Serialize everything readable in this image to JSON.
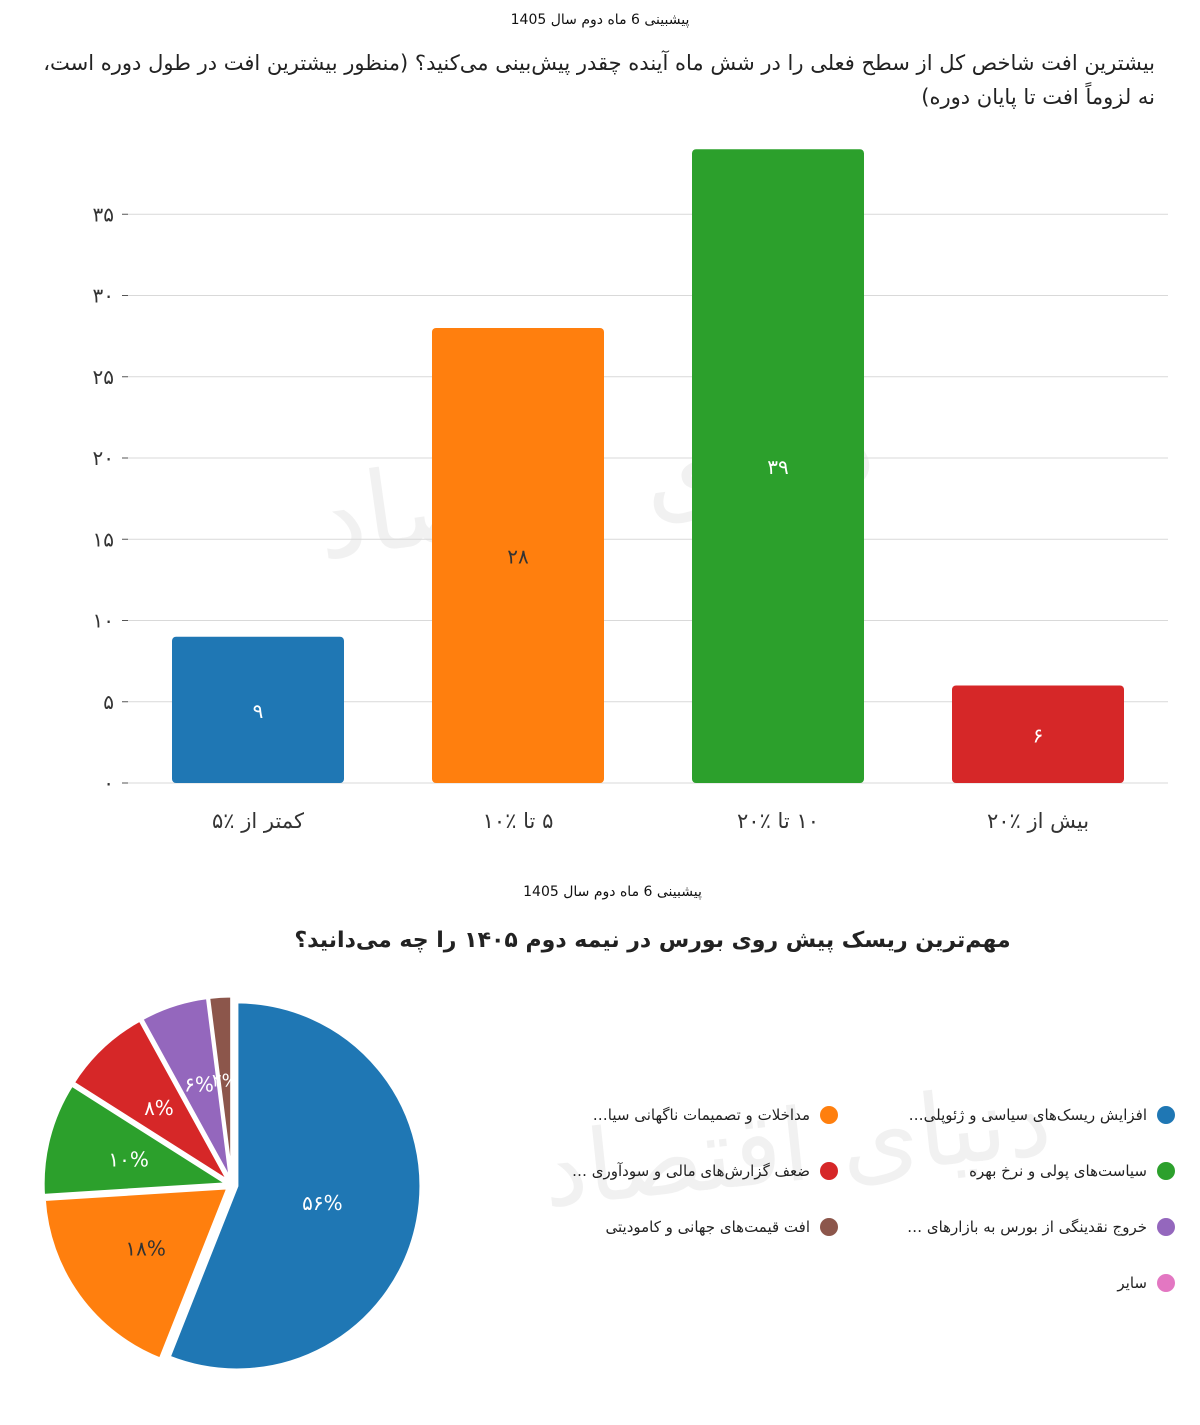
{
  "bar_chart_header": {
    "subtitle": "پیشبینی 6 ماه دوم سال 1405",
    "title": "بیشترین افت شاخص کل از سطح فعلی را در شش ماه آینده چقدر پیش‌بینی می‌کنید؟ (منظور بیشترین افت در طول دوره است، نه لزوماً افت تا پایان دوره)"
  },
  "pie_chart_header": {
    "subtitle": "پیشبینی 6 ماه دوم سال 1405",
    "title": "مهم‌ترین ریسک پیش روی بورس در نیمه دوم ۱۴۰۵ را چه می‌دانید؟"
  },
  "watermark": "دنیای اقتصاد",
  "chart_data": [
    {
      "type": "bar",
      "title": "بیشترین افت شاخص کل از سطح فعلی را در شش ماه آینده چقدر پیش‌بینی می‌کنید؟ (منظور بیشترین افت در طول دوره است، نه لزوماً افت تا پایان دوره)",
      "categories": [
        "کمتر از ٪۵",
        "۵ تا ٪۱۰",
        "۱۰ تا ٪۲۰",
        "بیش از ٪۲۰"
      ],
      "values": [
        9,
        28,
        39,
        6
      ],
      "value_labels": [
        "۹",
        "۲۸",
        "۳۹",
        "۶"
      ],
      "colors": [
        "#1f77b4",
        "#ff7f0e",
        "#2ca02c",
        "#d62728"
      ],
      "ylim": [
        0,
        39
      ],
      "yticks": [
        0,
        5,
        10,
        15,
        20,
        25,
        30,
        35
      ],
      "ytick_labels": [
        "۰",
        "۵",
        "۱۰",
        "۱۵",
        "۲۰",
        "۲۵",
        "۳۰",
        "۳۵"
      ],
      "grid": true,
      "xlabel": "",
      "ylabel": ""
    },
    {
      "type": "pie",
      "title": "مهم‌ترین ریسک پیش روی بورس در نیمه دوم ۱۴۰۵ را چه می‌دانید؟",
      "slices": [
        {
          "label": "افزایش ریسک‌های سیاسی و ژئوپلی…",
          "value": 56,
          "value_label": "۵۶%",
          "color": "#1f77b4"
        },
        {
          "label": "مداخلات و تصمیمات ناگهانی سیا…",
          "value": 18,
          "value_label": "۱۸%",
          "color": "#ff7f0e"
        },
        {
          "label": "سیاست‌های پولی و نرخ بهره",
          "value": 10,
          "value_label": "۱۰%",
          "color": "#2ca02c"
        },
        {
          "label": "ضعف گزارش‌های مالی و سودآوری …",
          "value": 8,
          "value_label": "۸%",
          "color": "#d62728"
        },
        {
          "label": "خروج نقدینگی از بورس به بازارهای …",
          "value": 6,
          "value_label": "۶%",
          "color": "#9467bd"
        },
        {
          "label": "افت قیمت‌های جهانی و کامودیتی",
          "value": 2,
          "value_label": "۲%",
          "color": "#8c564b"
        },
        {
          "label": "سایر",
          "value": 0,
          "value_label": "",
          "color": "#e377c2"
        }
      ],
      "legend_position": "right"
    }
  ]
}
